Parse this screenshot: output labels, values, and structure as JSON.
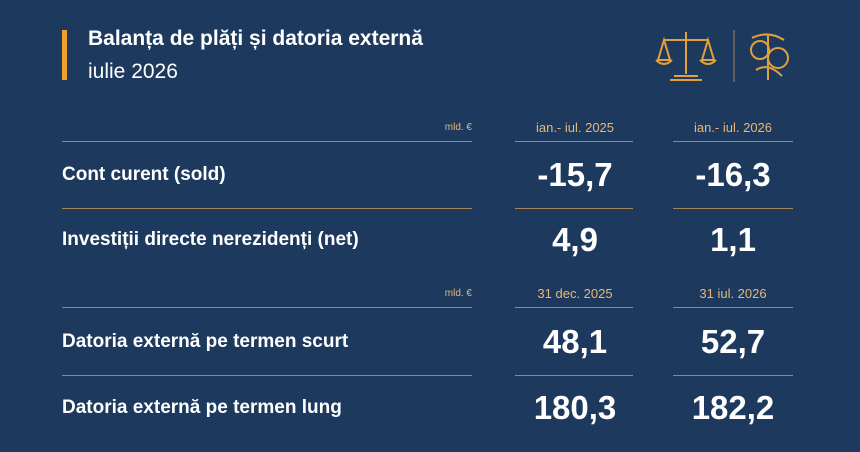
{
  "header": {
    "title": "Balanța de plăți și datoria externă",
    "subtitle": "iulie 2026"
  },
  "sections": [
    {
      "unit": "mld. €",
      "columns": [
        "ian.- iul. 2025",
        "ian.- iul. 2026"
      ],
      "rows": [
        {
          "label": "Cont curent (sold)",
          "values": [
            "-15,7",
            "-16,3"
          ]
        },
        {
          "label": "Investiții directe nerezidenți (net)",
          "values": [
            "4,9",
            "1,1"
          ]
        }
      ]
    },
    {
      "unit": "mld. €",
      "columns": [
        "31 dec. 2025",
        "31 iul. 2026"
      ],
      "rows": [
        {
          "label": "Datoria externă pe termen scurt",
          "values": [
            "48,1",
            "52,7"
          ]
        },
        {
          "label": "Datoria externă pe termen lung",
          "values": [
            "180,3",
            "182,2"
          ]
        }
      ]
    }
  ]
}
